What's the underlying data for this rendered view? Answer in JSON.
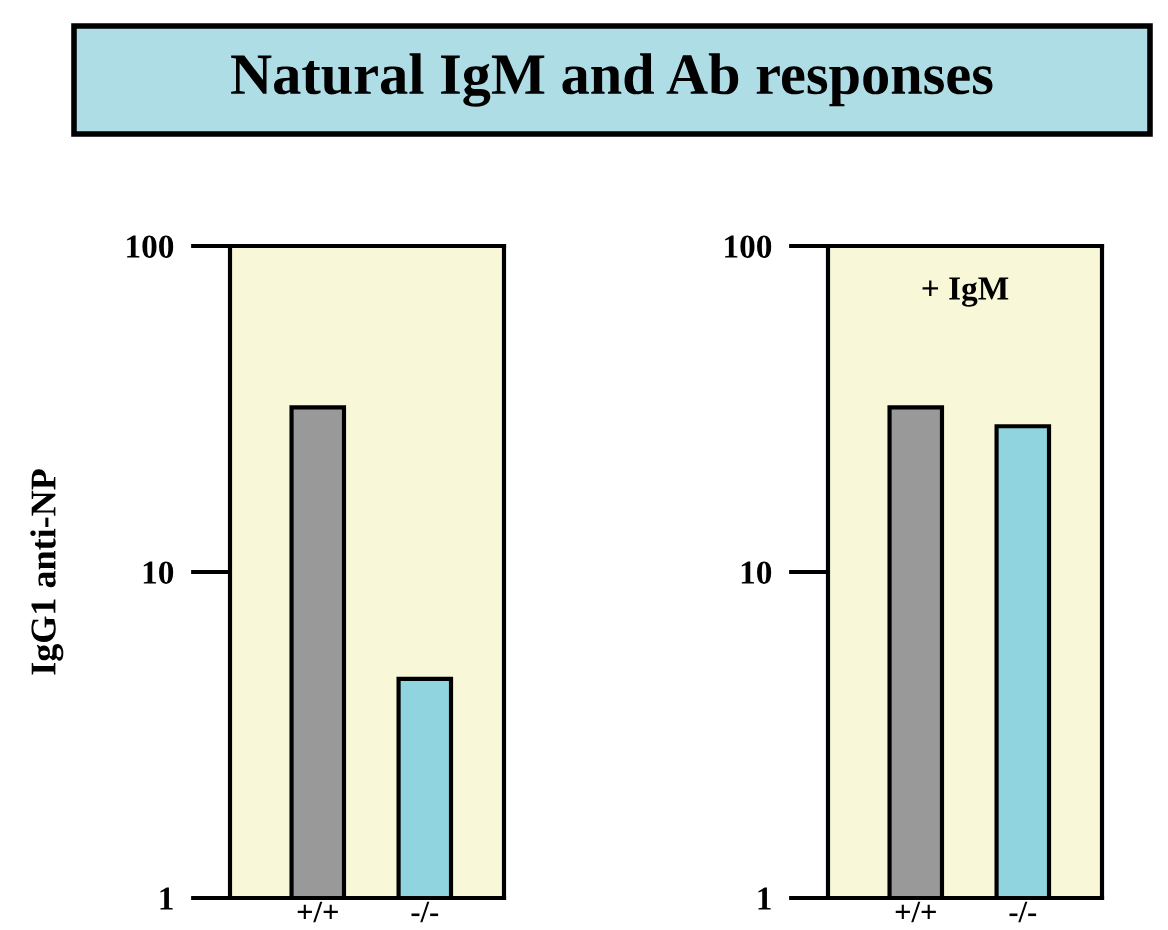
{
  "chart_data": [
    {
      "type": "bar",
      "title": "Natural IgM and Ab responses",
      "ylabel": "IgG1 anti-NP",
      "categories": [
        "+/+",
        "-/-"
      ],
      "values": [
        32,
        4.7
      ],
      "colors": [
        "#999999",
        "#8fd4de"
      ],
      "log": true,
      "ylim": [
        1,
        100
      ],
      "yticks": [
        1,
        10,
        100
      ],
      "grid": false,
      "legend": false
    },
    {
      "type": "bar",
      "annotations": [
        "+ IgM"
      ],
      "categories": [
        "+/+",
        "-/-"
      ],
      "values": [
        32,
        28
      ],
      "colors": [
        "#999999",
        "#8fd4de"
      ],
      "log": true,
      "ylim": [
        1,
        100
      ],
      "yticks": [
        1,
        10,
        100
      ],
      "grid": false,
      "legend": false
    }
  ]
}
